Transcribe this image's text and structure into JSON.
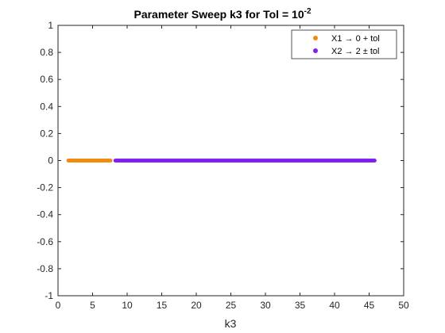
{
  "chart_data": {
    "type": "scatter",
    "title": {
      "main": "Parameter Sweep k3 for Tol = 10",
      "exponent": "-2"
    },
    "xlabel": "k3",
    "ylabel": "",
    "xlim": [
      0,
      50
    ],
    "ylim": [
      -1,
      1
    ],
    "x_ticks": [
      "0",
      "5",
      "10",
      "15",
      "20",
      "25",
      "30",
      "35",
      "40",
      "45",
      "50"
    ],
    "y_ticks": [
      "-1",
      "-0.8",
      "-0.6",
      "-0.4",
      "-0.2",
      "0",
      "0.2",
      "0.4",
      "0.6",
      "0.8",
      "1"
    ],
    "grid": false,
    "legend_position": "top-right",
    "series": [
      {
        "name": "X1 → 0 + tol",
        "color": "#f28a0f",
        "x_start": 1.5,
        "x_end": 7.6,
        "x_step": 0.1,
        "y": 0
      },
      {
        "name": "X2 → 2 ± tol",
        "color": "#7f1ff2",
        "x_start": 8.3,
        "x_end": 45.8,
        "x_step": 0.1,
        "y": 0
      }
    ]
  }
}
